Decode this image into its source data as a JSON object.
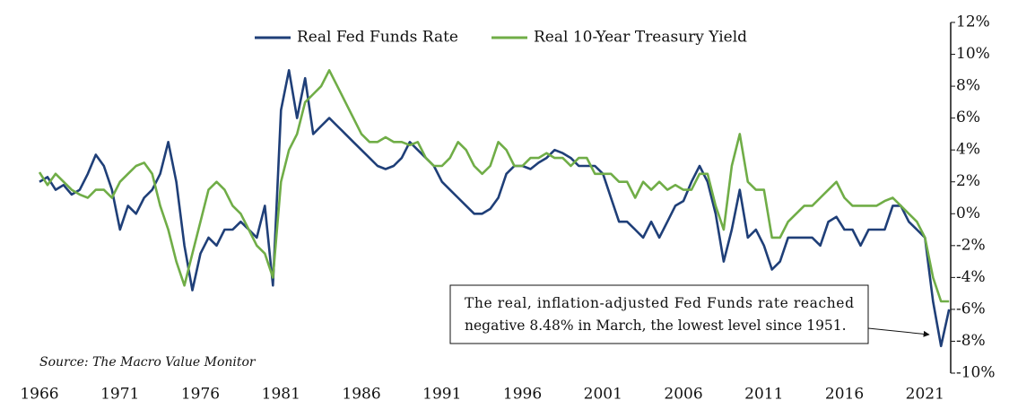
{
  "chart_data": {
    "type": "line",
    "legend": "top",
    "annotation": [
      "The real, inflation-adjusted Fed Funds rate reached",
      "negative 8.48% in March, the lowest level since 1951."
    ],
    "source": "Source: The Macro Value Monitor",
    "xlim": [
      1966,
      2022.6
    ],
    "xticks": [
      1966,
      1971,
      1976,
      1981,
      1986,
      1991,
      1996,
      2001,
      2006,
      2011,
      2016,
      2021
    ],
    "ylim": [
      -10,
      12
    ],
    "yticks": [
      {
        "value": 12,
        "label": "12%"
      },
      {
        "value": 10,
        "label": "10%"
      },
      {
        "value": 8,
        "label": "8%"
      },
      {
        "value": 6,
        "label": "6%"
      },
      {
        "value": 4,
        "label": "4%"
      },
      {
        "value": 2,
        "label": "2%"
      },
      {
        "value": 0,
        "label": "0%"
      },
      {
        "value": -2,
        "label": "-2%"
      },
      {
        "value": -4,
        "label": "-4%"
      },
      {
        "value": -6,
        "label": "-6%"
      },
      {
        "value": -8,
        "label": "-8%"
      },
      {
        "value": -10,
        "label": "-10%"
      }
    ],
    "x": [
      1966,
      1966.5,
      1967,
      1967.5,
      1968,
      1968.5,
      1969,
      1969.5,
      1970,
      1970.5,
      1971,
      1971.5,
      1972,
      1972.5,
      1973,
      1973.5,
      1974,
      1974.5,
      1975,
      1975.5,
      1976,
      1976.5,
      1977,
      1977.5,
      1978,
      1978.5,
      1979,
      1979.5,
      1980,
      1980.5,
      1981,
      1981.5,
      1982,
      1982.5,
      1983,
      1983.5,
      1984,
      1984.5,
      1985,
      1985.5,
      1986,
      1986.5,
      1987,
      1987.5,
      1988,
      1988.5,
      1989,
      1989.5,
      1990,
      1990.5,
      1991,
      1991.5,
      1992,
      1992.5,
      1993,
      1993.5,
      1994,
      1994.5,
      1995,
      1995.5,
      1996,
      1996.5,
      1997,
      1997.5,
      1998,
      1998.5,
      1999,
      1999.5,
      2000,
      2000.5,
      2001,
      2001.5,
      2002,
      2002.5,
      2003,
      2003.5,
      2004,
      2004.5,
      2005,
      2005.5,
      2006,
      2006.5,
      2007,
      2007.5,
      2008,
      2008.5,
      2009,
      2009.5,
      2010,
      2010.5,
      2011,
      2011.5,
      2012,
      2012.5,
      2013,
      2013.5,
      2014,
      2014.5,
      2015,
      2015.5,
      2016,
      2016.5,
      2017,
      2017.5,
      2018,
      2018.5,
      2019,
      2019.5,
      2020,
      2020.5,
      2021,
      2021.5,
      2022,
      2022.5
    ],
    "series": [
      {
        "name": "Real Fed Funds Rate",
        "color": "#1f3f78",
        "values": [
          2.0,
          2.3,
          1.5,
          1.8,
          1.2,
          1.5,
          2.5,
          3.7,
          3.0,
          1.5,
          -1.0,
          0.5,
          0,
          1.0,
          1.5,
          2.5,
          4.5,
          2.0,
          -2.0,
          -4.8,
          -2.5,
          -1.5,
          -2.0,
          -1.0,
          -1.0,
          -0.5,
          -1.0,
          -1.5,
          0.5,
          -4.5,
          6.5,
          9.0,
          6.0,
          8.5,
          5.0,
          5.5,
          6.0,
          5.5,
          5.0,
          4.5,
          4.0,
          3.5,
          3.0,
          2.8,
          3.0,
          3.5,
          4.5,
          4.0,
          3.5,
          3.0,
          2.0,
          1.5,
          1.0,
          0.5,
          0,
          0,
          0.3,
          1.0,
          2.5,
          3.0,
          3.0,
          2.8,
          3.2,
          3.5,
          4.0,
          3.8,
          3.5,
          3.0,
          3.0,
          3.0,
          2.5,
          1.0,
          -0.5,
          -0.5,
          -1.0,
          -1.5,
          -0.5,
          -1.5,
          -0.5,
          0.5,
          0.8,
          2.0,
          3.0,
          2.0,
          0,
          -3.0,
          -1.0,
          1.5,
          -1.5,
          -1.0,
          -2.0,
          -3.5,
          -3.0,
          -1.5,
          -1.5,
          -1.5,
          -1.5,
          -2.0,
          -0.5,
          -0.2,
          -1.0,
          -1.0,
          -2.0,
          -1.0,
          -1.0,
          -1.0,
          0.5,
          0.5,
          -0.5,
          -1.0,
          -1.5,
          -5.5,
          -8.3,
          -6.0
        ]
      },
      {
        "name": "Real 10-Year Treasury Yield",
        "color": "#70ad47",
        "values": [
          2.6,
          1.8,
          2.5,
          2.0,
          1.5,
          1.2,
          1.0,
          1.5,
          1.5,
          1.0,
          2.0,
          2.5,
          3.0,
          3.2,
          2.5,
          0.5,
          -1.0,
          -3.0,
          -4.5,
          -2.5,
          -0.5,
          1.5,
          2.0,
          1.5,
          0.5,
          0,
          -1.0,
          -2.0,
          -2.5,
          -4.0,
          2.0,
          4.0,
          5.0,
          7.0,
          7.5,
          8.0,
          9.0,
          8.0,
          7.0,
          6.0,
          5.0,
          4.5,
          4.5,
          4.8,
          4.5,
          4.5,
          4.3,
          4.5,
          3.5,
          3.0,
          3.0,
          3.5,
          4.5,
          4.0,
          3.0,
          2.5,
          3.0,
          4.5,
          4.0,
          3.0,
          3.0,
          3.5,
          3.5,
          3.8,
          3.5,
          3.5,
          3.0,
          3.5,
          3.5,
          2.5,
          2.5,
          2.5,
          2.0,
          2.0,
          1.0,
          2.0,
          1.5,
          2.0,
          1.5,
          1.8,
          1.5,
          1.5,
          2.5,
          2.5,
          0.5,
          -1.0,
          3.0,
          5.0,
          2.0,
          1.5,
          1.5,
          -1.5,
          -1.5,
          -0.5,
          0,
          0.5,
          0.5,
          1.0,
          1.5,
          2.0,
          1.0,
          0.5,
          0.5,
          0.5,
          0.5,
          0.8,
          1.0,
          0.5,
          0,
          -0.5,
          -1.5,
          -4.0,
          -5.5,
          -5.5
        ]
      }
    ]
  }
}
